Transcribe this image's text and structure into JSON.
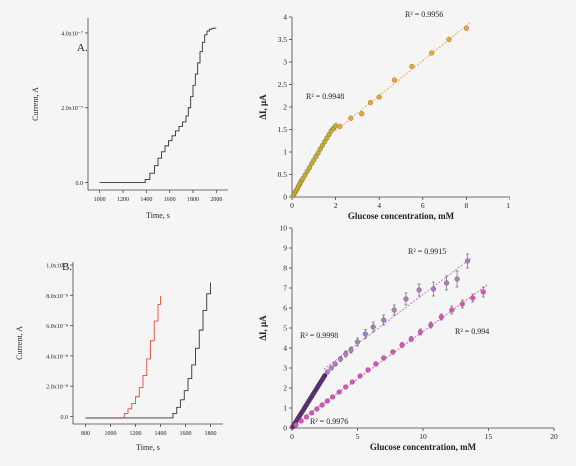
{
  "panels": [
    {
      "id": "A",
      "label": "A."
    },
    {
      "id": "B",
      "label": "B."
    }
  ],
  "chart_data": [
    {
      "id": "A-left",
      "type": "line",
      "panel": "A.",
      "xlabel": "Time, s",
      "ylabel": "Current, A",
      "xlim": [
        900,
        2100
      ],
      "ylim": [
        -0.2,
        4.4
      ],
      "x_ticks": [
        "1000",
        "1200",
        "1400",
        "1600",
        "1800",
        "2000"
      ],
      "x_tick_values": [
        1000,
        1200,
        1400,
        1600,
        1800,
        2000
      ],
      "y_ticks": [
        "0.0",
        "2.0x10⁻⁷",
        "4.0x10⁻⁷"
      ],
      "y_tick_values": [
        0,
        2,
        4
      ],
      "series": [
        {
          "color": "#333333",
          "x": [
            1000,
            1350,
            1390,
            1430,
            1470,
            1500,
            1530,
            1560,
            1590,
            1620,
            1650,
            1680,
            1710,
            1740,
            1760,
            1780,
            1800,
            1820,
            1840,
            1860,
            1880,
            1900,
            1920,
            1940,
            1960,
            1980,
            2000
          ],
          "y": [
            0,
            0,
            0.08,
            0.25,
            0.45,
            0.65,
            0.82,
            0.98,
            1.12,
            1.25,
            1.38,
            1.5,
            1.62,
            1.78,
            2.0,
            2.3,
            2.6,
            2.9,
            3.2,
            3.5,
            3.75,
            3.95,
            4.05,
            4.1,
            4.12,
            4.13,
            4.13
          ]
        }
      ]
    },
    {
      "id": "A-right",
      "type": "scatter",
      "xlabel": "Glucose concentration, mM",
      "ylabel": "ΔI, μA",
      "xlim": [
        0,
        10
      ],
      "ylim": [
        0,
        4
      ],
      "x_ticks": [
        "0",
        "2",
        "4",
        "6",
        "8",
        "10"
      ],
      "x_tick_values": [
        0,
        2,
        4,
        6,
        8,
        10
      ],
      "y_ticks": [
        "0",
        "0.5",
        "1",
        "1.5",
        "2",
        "2.5",
        "3",
        "3.5",
        "4"
      ],
      "y_tick_values": [
        0,
        0.5,
        1,
        1.5,
        2,
        2.5,
        3,
        3.5,
        4
      ],
      "series": [
        {
          "color": "#bfae3a",
          "x": [
            0.05,
            0.1,
            0.15,
            0.2,
            0.25,
            0.3,
            0.35,
            0.4,
            0.45,
            0.5,
            0.6,
            0.7,
            0.8,
            0.9,
            1.0,
            1.1,
            1.2,
            1.3,
            1.4,
            1.5,
            1.6,
            1.7,
            1.8,
            1.9,
            2.0
          ],
          "y": [
            0.03,
            0.07,
            0.11,
            0.15,
            0.19,
            0.24,
            0.28,
            0.33,
            0.37,
            0.41,
            0.49,
            0.57,
            0.65,
            0.74,
            0.82,
            0.9,
            0.98,
            1.07,
            1.15,
            1.23,
            1.31,
            1.39,
            1.47,
            1.53,
            1.58
          ],
          "r2": "R² = 0.9948"
        },
        {
          "color": "#f0a43a",
          "x": [
            2.2,
            2.7,
            3.2,
            3.6,
            4.0,
            4.7,
            5.5,
            6.4,
            7.2,
            8.0
          ],
          "y": [
            1.57,
            1.75,
            1.85,
            2.1,
            2.22,
            2.6,
            2.9,
            3.2,
            3.5,
            3.75
          ],
          "r2": "R² = 0.9956"
        }
      ]
    },
    {
      "id": "B-left",
      "type": "line",
      "panel": "B.",
      "xlabel": "Time, s",
      "ylabel": "Current, A",
      "xlim": [
        700,
        1900
      ],
      "ylim": [
        -0.5,
        10.2
      ],
      "x_ticks": [
        "800",
        "1000",
        "1200",
        "1400",
        "1600",
        "1800"
      ],
      "x_tick_values": [
        800,
        1000,
        1200,
        1400,
        1600,
        1800
      ],
      "y_ticks": [
        "0.0",
        "2.0x10⁻⁸",
        "4.0x10⁻⁸",
        "6.0x10⁻⁸",
        "8.0x10⁻⁸",
        "1.0x10⁻⁷"
      ],
      "y_tick_values": [
        0,
        2,
        4,
        6,
        8,
        10
      ],
      "series": [
        {
          "color": "#e0503a",
          "x": [
            800,
            1080,
            1110,
            1140,
            1170,
            1200,
            1230,
            1260,
            1290,
            1320,
            1350,
            1380,
            1400
          ],
          "y": [
            -0.1,
            -0.1,
            0.2,
            0.5,
            0.85,
            1.3,
            1.9,
            2.7,
            3.8,
            5.0,
            6.3,
            7.4,
            7.95
          ]
        },
        {
          "color": "#333333",
          "x": [
            800,
            1470,
            1500,
            1530,
            1560,
            1590,
            1620,
            1650,
            1680,
            1710,
            1740,
            1770,
            1800
          ],
          "y": [
            -0.1,
            -0.1,
            0.2,
            0.6,
            1.1,
            1.7,
            2.5,
            3.4,
            4.5,
            5.7,
            7.0,
            8.1,
            8.85
          ]
        }
      ]
    },
    {
      "id": "B-right",
      "type": "scatter",
      "xlabel": "Glucose concentration, mM",
      "ylabel": "ΔI, μA",
      "xlim": [
        0,
        20
      ],
      "ylim": [
        0,
        10
      ],
      "x_ticks": [
        "0",
        "5",
        "10",
        "15",
        "20"
      ],
      "x_tick_values": [
        0,
        5,
        10,
        15,
        20
      ],
      "y_ticks": [
        "0",
        "1",
        "2",
        "3",
        "4",
        "5",
        "6",
        "7",
        "8",
        "9",
        "10"
      ],
      "y_tick_values": [
        0,
        1,
        2,
        3,
        4,
        5,
        6,
        7,
        8,
        9,
        10
      ],
      "series": [
        {
          "color": "#4b2a86",
          "x": [
            0.05,
            0.1,
            0.2,
            0.3,
            0.4,
            0.5,
            0.6,
            0.7,
            0.8,
            0.9,
            1.0,
            1.1,
            1.2,
            1.3,
            1.4,
            1.5,
            1.6,
            1.7,
            1.8,
            1.9,
            2.0,
            2.1,
            2.2,
            2.3,
            2.4,
            2.5
          ],
          "y": [
            0.05,
            0.1,
            0.21,
            0.31,
            0.42,
            0.52,
            0.63,
            0.73,
            0.84,
            0.94,
            1.05,
            1.15,
            1.26,
            1.36,
            1.47,
            1.57,
            1.68,
            1.78,
            1.89,
            1.99,
            2.1,
            2.2,
            2.31,
            2.41,
            2.52,
            2.62
          ],
          "r2": "R² = 0.9998"
        },
        {
          "color": "#a97ad0",
          "x": [
            2.7,
            3.0,
            3.3,
            3.7,
            4.1,
            4.5,
            5.0,
            5.6,
            6.2,
            7.0,
            7.8,
            8.7,
            9.7,
            10.8,
            11.8,
            12.6,
            13.4
          ],
          "y": [
            2.8,
            3.0,
            3.2,
            3.45,
            3.7,
            3.9,
            4.3,
            4.7,
            5.05,
            5.4,
            5.9,
            6.45,
            6.9,
            6.95,
            7.25,
            7.45,
            8.35
          ],
          "err": [
            0.1,
            0.1,
            0.1,
            0.12,
            0.15,
            0.15,
            0.2,
            0.22,
            0.25,
            0.25,
            0.25,
            0.3,
            0.3,
            0.35,
            0.35,
            0.4,
            0.35
          ],
          "r2": "R² = 0.9915"
        },
        {
          "color": "#d850c8",
          "x": [
            0.3,
            0.7,
            1.1,
            1.5,
            1.9,
            2.3,
            2.7,
            3.1,
            3.6,
            4.1,
            4.6,
            5.2,
            5.8,
            6.4,
            7.0,
            7.7,
            8.4,
            9.1,
            9.8,
            10.6,
            11.4,
            12.2,
            13.0,
            13.8,
            14.6
          ],
          "y": [
            0.15,
            0.35,
            0.55,
            0.75,
            0.95,
            1.15,
            1.35,
            1.55,
            1.8,
            2.05,
            2.3,
            2.6,
            2.9,
            3.2,
            3.5,
            3.8,
            4.15,
            4.45,
            4.8,
            5.15,
            5.55,
            5.9,
            6.2,
            6.5,
            6.8
          ],
          "err": [
            0,
            0,
            0,
            0,
            0,
            0,
            0,
            0,
            0,
            0,
            0.05,
            0.05,
            0.1,
            0.1,
            0.1,
            0.1,
            0.12,
            0.12,
            0.15,
            0.15,
            0.15,
            0.2,
            0.2,
            0.2,
            0.25
          ],
          "r2": "R² = 0.9976",
          "r2_extra": "R² = 0.994"
        }
      ]
    }
  ]
}
